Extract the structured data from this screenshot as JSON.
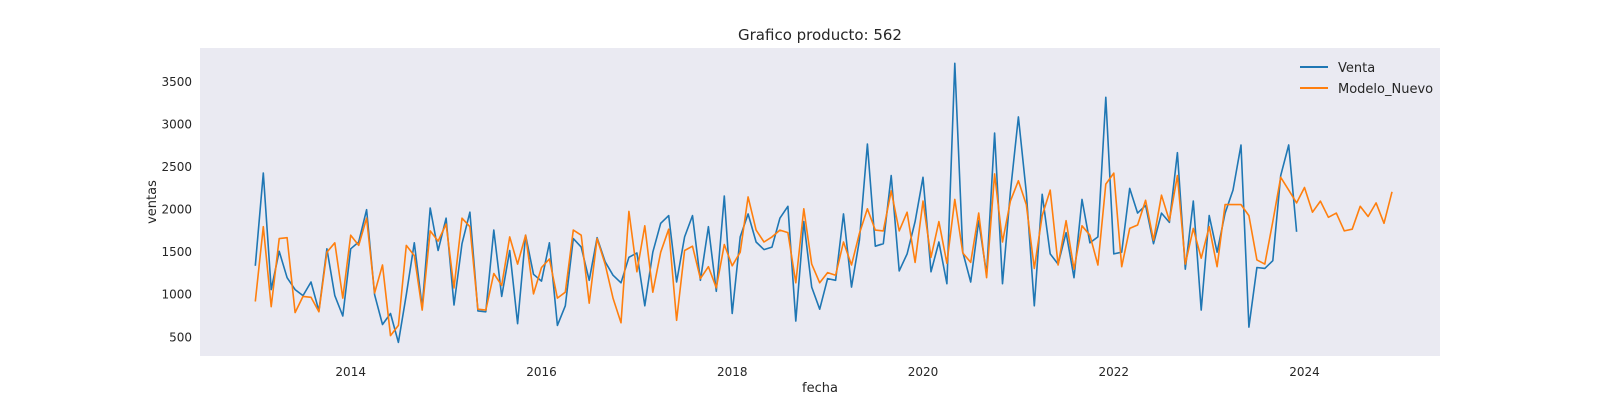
{
  "chart_data": {
    "type": "line",
    "title": "Grafico producto: 562",
    "xlabel": "fecha",
    "ylabel": "ventas",
    "xlim": [
      2012.42,
      2025.42
    ],
    "ylim": [
      280,
      3900
    ],
    "grid": false,
    "legend_position": "top-right",
    "x_ticks": [
      2014,
      2016,
      2018,
      2020,
      2022,
      2024
    ],
    "x_tick_labels": [
      "2014",
      "2016",
      "2018",
      "2020",
      "2022",
      "2024"
    ],
    "y_ticks": [
      500,
      1000,
      1500,
      2000,
      2500,
      3000,
      3500
    ],
    "y_tick_labels": [
      "500",
      "1000",
      "1500",
      "2000",
      "2500",
      "3000",
      "3500"
    ],
    "x_start": 2013.0,
    "x_step": 0.083333,
    "series": [
      {
        "name": "Venta",
        "color": "#1f77b4",
        "values": [
          1340,
          2430,
          1060,
          1510,
          1200,
          1060,
          990,
          1150,
          810,
          1540,
          990,
          750,
          1540,
          1620,
          2000,
          1000,
          650,
          780,
          440,
          1000,
          1610,
          850,
          2020,
          1520,
          1900,
          880,
          1600,
          1970,
          810,
          800,
          1760,
          980,
          1520,
          660,
          1700,
          1240,
          1160,
          1610,
          640,
          870,
          1660,
          1560,
          1170,
          1670,
          1390,
          1230,
          1140,
          1440,
          1490,
          870,
          1500,
          1840,
          1930,
          1150,
          1680,
          1930,
          1170,
          1800,
          1040,
          2160,
          780,
          1680,
          1950,
          1620,
          1530,
          1560,
          1900,
          2040,
          690,
          1860,
          1090,
          830,
          1190,
          1170,
          1950,
          1090,
          1640,
          2770,
          1570,
          1600,
          2400,
          1280,
          1480,
          1860,
          2380,
          1270,
          1620,
          1130,
          3720,
          1500,
          1150,
          1870,
          1240,
          2900,
          1130,
          2210,
          3090,
          2200,
          870,
          2180,
          1480,
          1360,
          1730,
          1200,
          2120,
          1610,
          1680,
          3320,
          1480,
          1500,
          2250,
          1960,
          2050,
          1600,
          1960,
          1850,
          2670,
          1300,
          2100,
          820,
          1930,
          1500,
          1960,
          2230,
          2760,
          620,
          1320,
          1310,
          1400,
          2400,
          2760,
          1740
        ]
      },
      {
        "name": "Modelo_Nuevo",
        "color": "#ff7f0e",
        "values": [
          920,
          1800,
          860,
          1660,
          1670,
          790,
          980,
          970,
          800,
          1500,
          1610,
          960,
          1700,
          1580,
          1900,
          1020,
          1350,
          520,
          640,
          1580,
          1460,
          820,
          1750,
          1630,
          1830,
          1080,
          1900,
          1800,
          830,
          820,
          1250,
          1110,
          1680,
          1360,
          1700,
          1010,
          1320,
          1420,
          960,
          1030,
          1760,
          1700,
          900,
          1660,
          1360,
          960,
          670,
          1980,
          1270,
          1810,
          1030,
          1500,
          1770,
          700,
          1520,
          1570,
          1190,
          1330,
          1080,
          1590,
          1340,
          1500,
          2150,
          1760,
          1620,
          1680,
          1760,
          1730,
          1140,
          2010,
          1360,
          1140,
          1260,
          1230,
          1620,
          1350,
          1720,
          2010,
          1760,
          1750,
          2220,
          1750,
          1970,
          1380,
          2100,
          1440,
          1860,
          1370,
          2120,
          1490,
          1380,
          1960,
          1200,
          2420,
          1620,
          2100,
          2340,
          2060,
          1310,
          1930,
          2230,
          1350,
          1870,
          1300,
          1810,
          1700,
          1350,
          2300,
          2430,
          1330,
          1780,
          1820,
          2110,
          1640,
          2170,
          1870,
          2400,
          1360,
          1780,
          1430,
          1800,
          1330,
          2060,
          2060,
          2060,
          1930,
          1410,
          1360,
          1860,
          2380,
          2230,
          2080,
          2260,
          1970,
          2100,
          1910,
          1960,
          1750,
          1770,
          2040,
          1920,
          2080,
          1840,
          2210
        ]
      }
    ]
  }
}
